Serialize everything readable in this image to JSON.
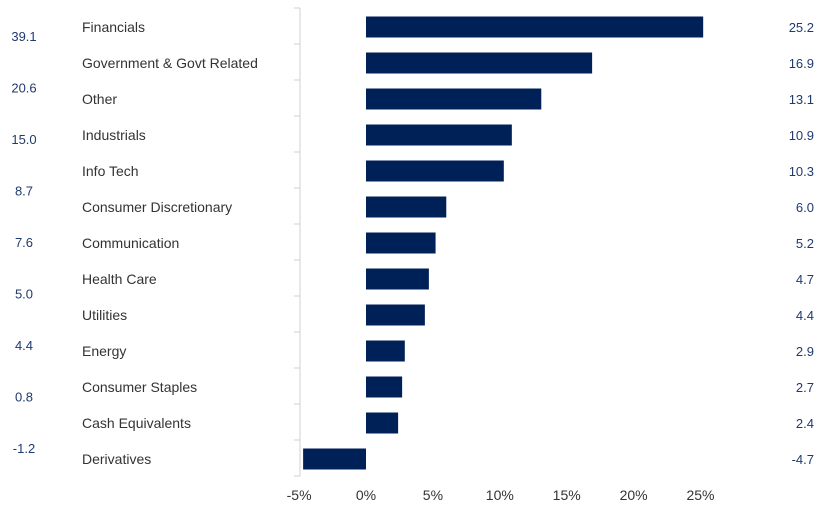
{
  "chart_data": {
    "type": "bar",
    "orientation": "horizontal",
    "categories": [
      "Financials",
      "Government & Govt Related",
      "Other",
      "Industrials",
      "Info Tech",
      "Consumer Discretionary",
      "Communication",
      "Health Care",
      "Utilities",
      "Energy",
      "Consumer Staples",
      "Cash Equivalents",
      "Derivatives"
    ],
    "values": [
      25.2,
      16.9,
      13.1,
      10.9,
      10.3,
      6.0,
      5.2,
      4.7,
      4.4,
      2.9,
      2.7,
      2.4,
      -4.7
    ],
    "value_labels": [
      "25.2",
      "16.9",
      "13.1",
      "10.9",
      "10.3",
      "6.0",
      "5.2",
      "4.7",
      "4.4",
      "2.9",
      "2.7",
      "2.4",
      "-4.7"
    ],
    "left_column_values": [
      "39.1",
      "20.6",
      "15.0",
      "8.7",
      "7.6",
      "5.0",
      "4.4",
      "0.8",
      "-1.2"
    ],
    "xlim": [
      -5,
      30
    ],
    "x_ticks": [
      -5,
      0,
      5,
      10,
      15,
      20,
      25
    ],
    "x_tick_labels": [
      "-5%",
      "0%",
      "5%",
      "10%",
      "15%",
      "20%",
      "25%"
    ],
    "bar_color": "#002157",
    "label_color": "#1f3a6e",
    "axis_color": "#d0d0d0",
    "grid": false,
    "legend": "none"
  }
}
